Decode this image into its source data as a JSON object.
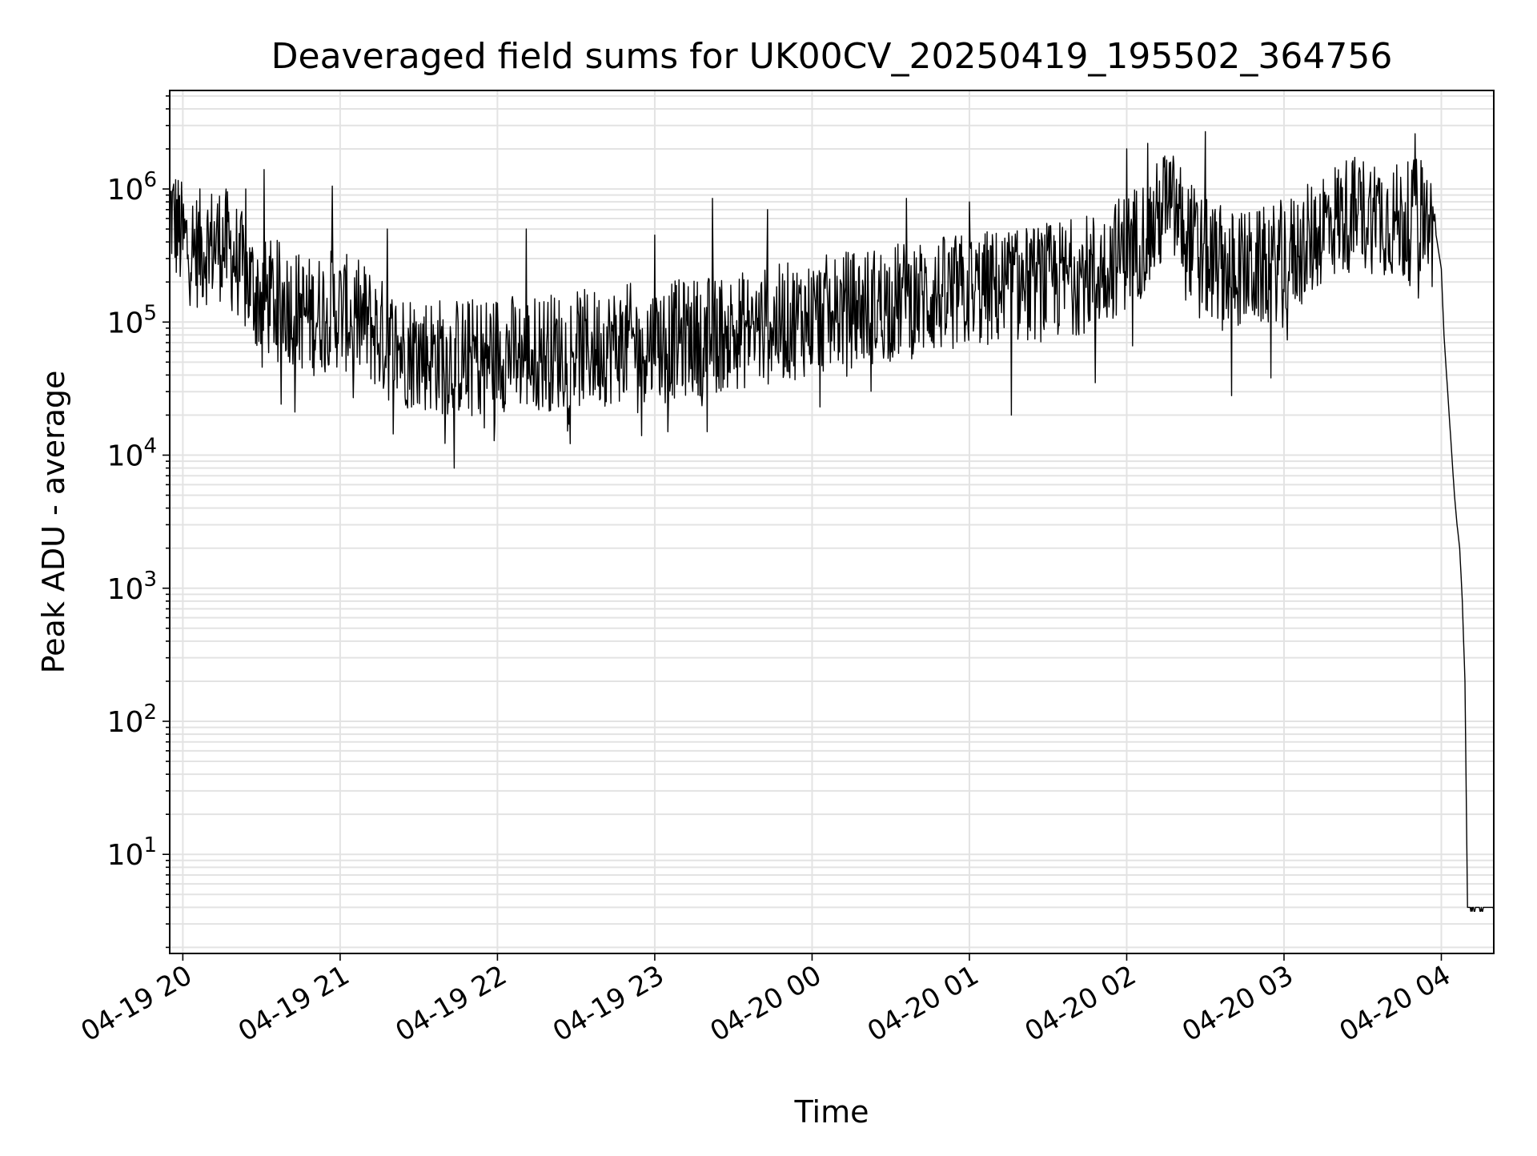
{
  "chart_data": {
    "type": "line",
    "title": "Deaveraged field sums for UK00CV_20250419_195502_364756",
    "xlabel": "Time",
    "ylabel": "Peak ADU - average",
    "y_scale": "log",
    "grid": "on (major and minor)",
    "legend": "none",
    "x_tick_labels": [
      "04-19 20",
      "04-19 21",
      "04-19 22",
      "04-19 23",
      "04-20 00",
      "04-20 01",
      "04-20 02",
      "04-20 03",
      "04-20 04"
    ],
    "y_tick_labels": [
      {
        "value": 10,
        "base": "10",
        "exp": "1"
      },
      {
        "value": 100,
        "base": "10",
        "exp": "2"
      },
      {
        "value": 1000,
        "base": "10",
        "exp": "3"
      },
      {
        "value": 10000,
        "base": "10",
        "exp": "4"
      },
      {
        "value": 100000,
        "base": "10",
        "exp": "5"
      },
      {
        "value": 1000000,
        "base": "10",
        "exp": "6"
      }
    ],
    "xlim": [
      "2025-04-19 19:55",
      "2025-04-20 04:20"
    ],
    "ylim": [
      1.8,
      5500000
    ],
    "series": [
      {
        "color": "#000000",
        "points": [
          [
            "2025-04-19 19:55",
            700000
          ],
          [
            "2025-04-19 20:00",
            400000
          ],
          [
            "2025-04-19 20:05",
            350000
          ],
          [
            "2025-04-19 20:10",
            380000
          ],
          [
            "2025-04-19 20:15",
            400000
          ],
          [
            "2025-04-19 20:20",
            300000
          ],
          [
            "2025-04-19 20:25",
            200000
          ],
          [
            "2025-04-19 20:30",
            150000
          ],
          [
            "2025-04-19 20:35",
            150000
          ],
          [
            "2025-04-19 20:40",
            140000
          ],
          [
            "2025-04-19 20:45",
            120000
          ],
          [
            "2025-04-19 20:50",
            110000
          ],
          [
            "2025-04-19 20:55",
            130000
          ],
          [
            "2025-04-19 21:00",
            120000
          ],
          [
            "2025-04-19 21:05",
            110000
          ],
          [
            "2025-04-19 21:10",
            100000
          ],
          [
            "2025-04-19 21:15",
            80000
          ],
          [
            "2025-04-19 21:20",
            65000
          ],
          [
            "2025-04-19 21:30",
            60000
          ],
          [
            "2025-04-19 21:40",
            55000
          ],
          [
            "2025-04-19 21:50",
            55000
          ],
          [
            "2025-04-19 22:00",
            60000
          ],
          [
            "2025-04-19 22:10",
            58000
          ],
          [
            "2025-04-19 22:20",
            60000
          ],
          [
            "2025-04-19 22:30",
            62000
          ],
          [
            "2025-04-19 22:40",
            65000
          ],
          [
            "2025-04-19 22:50",
            70000
          ],
          [
            "2025-04-19 23:00",
            70000
          ],
          [
            "2025-04-19 23:10",
            75000
          ],
          [
            "2025-04-19 23:20",
            80000
          ],
          [
            "2025-04-19 23:30",
            85000
          ],
          [
            "2025-04-19 23:40",
            90000
          ],
          [
            "2025-04-19 23:50",
            100000
          ],
          [
            "2025-04-20 00:00",
            110000
          ],
          [
            "2025-04-20 00:10",
            120000
          ],
          [
            "2025-04-20 00:20",
            130000
          ],
          [
            "2025-04-20 00:30",
            140000
          ],
          [
            "2025-04-20 00:40",
            150000
          ],
          [
            "2025-04-20 00:50",
            160000
          ],
          [
            "2025-04-20 01:00",
            170000
          ],
          [
            "2025-04-20 01:10",
            180000
          ],
          [
            "2025-04-20 01:20",
            190000
          ],
          [
            "2025-04-20 01:30",
            200000
          ],
          [
            "2025-04-20 01:40",
            220000
          ],
          [
            "2025-04-20 01:50",
            250000
          ],
          [
            "2025-04-20 02:00",
            350000
          ],
          [
            "2025-04-20 02:10",
            500000
          ],
          [
            "2025-04-20 02:15",
            800000
          ],
          [
            "2025-04-20 02:20",
            600000
          ],
          [
            "2025-04-20 02:25",
            400000
          ],
          [
            "2025-04-20 02:30",
            300000
          ],
          [
            "2025-04-20 02:40",
            250000
          ],
          [
            "2025-04-20 02:50",
            250000
          ],
          [
            "2025-04-20 03:00",
            300000
          ],
          [
            "2025-04-20 03:10",
            400000
          ],
          [
            "2025-04-20 03:15",
            550000
          ],
          [
            "2025-04-20 03:20",
            600000
          ],
          [
            "2025-04-20 03:25",
            650000
          ],
          [
            "2025-04-20 03:30",
            650000
          ],
          [
            "2025-04-20 03:35",
            650000
          ],
          [
            "2025-04-20 03:40",
            600000
          ],
          [
            "2025-04-20 03:45",
            550000
          ],
          [
            "2025-04-20 03:50",
            600000
          ],
          [
            "2025-04-20 03:52",
            650000
          ],
          [
            "2025-04-20 03:55",
            550000
          ],
          [
            "2025-04-20 03:58",
            450000
          ],
          [
            "2025-04-20 04:00",
            250000
          ],
          [
            "2025-04-20 04:01",
            80000
          ],
          [
            "2025-04-20 04:03",
            20000
          ],
          [
            "2025-04-20 04:05",
            5000
          ],
          [
            "2025-04-20 04:06",
            3000
          ],
          [
            "2025-04-20 04:07",
            2000
          ],
          [
            "2025-04-20 04:08",
            800
          ],
          [
            "2025-04-20 04:09",
            200
          ],
          [
            "2025-04-20 04:10",
            4
          ],
          [
            "2025-04-20 04:20",
            4
          ]
        ],
        "spikes": [
          [
            "2025-04-19 20:24",
            1000000
          ],
          [
            "2025-04-19 20:31",
            1400000
          ],
          [
            "2025-04-19 20:57",
            1050000
          ],
          [
            "2025-04-19 21:18",
            500000
          ],
          [
            "2025-04-19 22:11",
            500000
          ],
          [
            "2025-04-19 23:00",
            450000
          ],
          [
            "2025-04-19 23:22",
            850000
          ],
          [
            "2025-04-19 23:43",
            700000
          ],
          [
            "2025-04-20 00:36",
            850000
          ],
          [
            "2025-04-20 01:00",
            800000
          ],
          [
            "2025-04-20 02:00",
            2000000
          ],
          [
            "2025-04-20 02:08",
            2200000
          ],
          [
            "2025-04-20 02:30",
            2700000
          ],
          [
            "2025-04-20 03:50",
            2600000
          ]
        ],
        "dips": [
          [
            "2025-04-19 21:05",
            27000
          ],
          [
            "2025-04-19 21:55",
            16000
          ],
          [
            "2025-04-19 22:55",
            14000
          ],
          [
            "2025-04-19 23:05",
            15000
          ],
          [
            "2025-04-19 23:20",
            15000
          ],
          [
            "2025-04-20 00:03",
            23000
          ],
          [
            "2025-04-20 01:16",
            20000
          ],
          [
            "2025-04-20 01:48",
            35000
          ],
          [
            "2025-04-20 02:40",
            28000
          ],
          [
            "2025-04-20 02:55",
            38000
          ]
        ]
      }
    ]
  }
}
